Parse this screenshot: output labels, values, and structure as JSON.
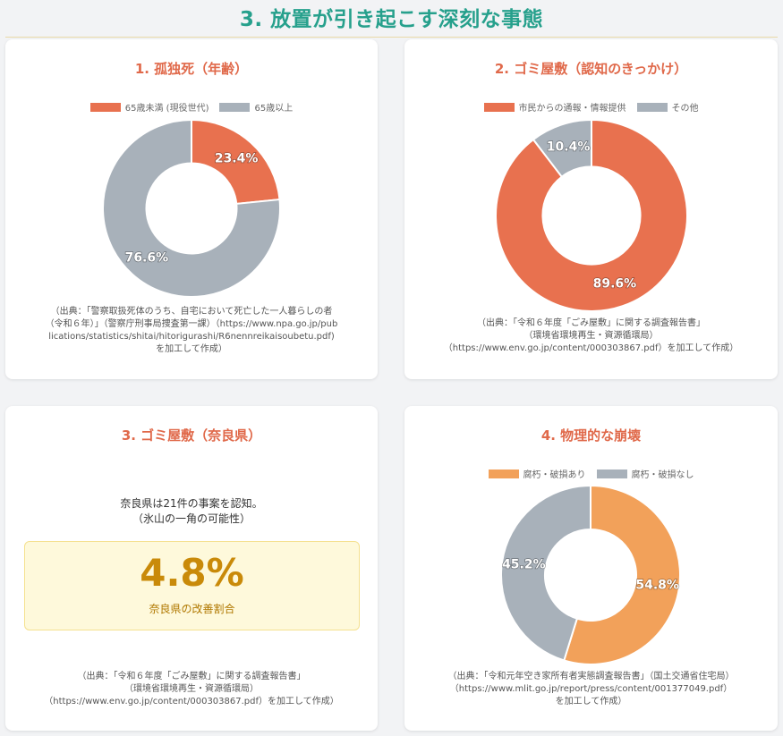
{
  "page": {
    "title": "3. 放置が引き起こす深刻な事態"
  },
  "cards": [
    {
      "title": "1. 孤独死（年齢）",
      "legend": [
        {
          "label": "65歳未満 (現役世代)",
          "color": "#e8714f"
        },
        {
          "label": "65歳以上",
          "color": "#a8b1ba"
        }
      ],
      "source": [
        "（出典：「警察取扱死体のうち、自宅において死亡した一人暮らしの者",
        "（令和６年）」（警察庁刑事局捜査第一課）（https://www.npa.go.jp/pub",
        "lications/statistics/shitai/hitorigurashi/R6nennreikaisoubetu.pdf)",
        "を加工して作成）"
      ]
    },
    {
      "title": "2. ゴミ屋敷（認知のきっかけ）",
      "legend": [
        {
          "label": "市民からの通報・情報提供",
          "color": "#e8714f"
        },
        {
          "label": "その他",
          "color": "#a8b1ba"
        }
      ],
      "source": [
        "（出典：「令和６年度「ごみ屋敷」に関する調査報告書」",
        "（環境省環境再生・資源循環局）",
        "（https://www.env.go.jp/content/000303867.pdf）を加工して作成）"
      ]
    },
    {
      "title": "3. ゴミ屋敷（奈良県）",
      "text_line1": "奈良県は21件の事案を認知。",
      "text_line2": "（氷山の一角の可能性）",
      "big_value": "4.8%",
      "big_caption": "奈良県の改善割合",
      "source": [
        "（出典：「令和６年度「ごみ屋敷」に関する調査報告書」",
        "（環境省環境再生・資源循環局）",
        "（https://www.env.go.jp/content/000303867.pdf）を加工して作成）"
      ]
    },
    {
      "title": "4. 物理的な崩壊",
      "legend": [
        {
          "label": "腐朽・破損あり",
          "color": "#f2a15a"
        },
        {
          "label": "腐朽・破損なし",
          "color": "#a8b1ba"
        }
      ],
      "source": [
        "（出典：「令和元年空き家所有者実態調査報告書」（国土交通省住宅局）",
        "（https://www.mlit.go.jp/report/press/content/001377049.pdf）",
        "を加工して作成）"
      ]
    }
  ],
  "chart_data": [
    {
      "type": "pie",
      "categories": [
        "65歳未満 (現役世代)",
        "65歳以上"
      ],
      "values": [
        23.4,
        76.6
      ],
      "labels": [
        "23.4%",
        "76.6%"
      ],
      "colors": [
        "#e8714f",
        "#a8b1ba"
      ],
      "title": "1. 孤独死（年齢）",
      "legend": "top"
    },
    {
      "type": "pie",
      "categories": [
        "市民からの通報・情報提供",
        "その他"
      ],
      "values": [
        89.6,
        10.4
      ],
      "labels": [
        "89.6%",
        "10.4%"
      ],
      "colors": [
        "#e8714f",
        "#a8b1ba"
      ],
      "title": "2. ゴミ屋敷（認知のきっかけ）",
      "legend": "top"
    },
    {
      "type": "pie",
      "categories": [
        "腐朽・破損あり",
        "腐朽・破損なし"
      ],
      "values": [
        54.8,
        45.2
      ],
      "labels": [
        "54.8%",
        "45.2%"
      ],
      "colors": [
        "#f2a15a",
        "#a8b1ba"
      ],
      "title": "4. 物理的な崩壊",
      "legend": "top"
    }
  ]
}
